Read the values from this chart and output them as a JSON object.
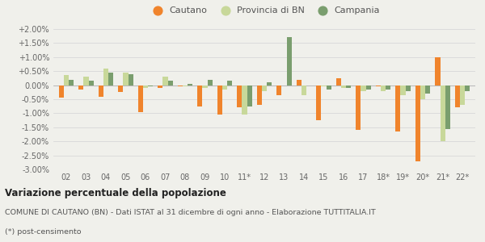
{
  "categories": [
    "02",
    "03",
    "04",
    "05",
    "06",
    "07",
    "08",
    "09",
    "10",
    "11*",
    "12",
    "13",
    "14",
    "15",
    "16",
    "17",
    "18*",
    "19*",
    "20*",
    "21*",
    "22*"
  ],
  "cautano": [
    -0.45,
    -0.15,
    -0.4,
    -0.25,
    -0.95,
    -0.1,
    -0.05,
    -0.75,
    -1.05,
    -0.8,
    -0.7,
    -0.35,
    0.2,
    -1.25,
    0.25,
    -1.6,
    -0.05,
    -1.65,
    -2.7,
    1.0,
    -0.8
  ],
  "provincia": [
    0.35,
    0.3,
    0.6,
    0.45,
    -0.1,
    0.3,
    -0.05,
    -0.1,
    -0.15,
    -1.05,
    -0.2,
    0.0,
    -0.35,
    -0.05,
    -0.1,
    -0.2,
    -0.2,
    -0.35,
    -0.5,
    -2.0,
    -0.7
  ],
  "campania": [
    0.2,
    0.15,
    0.45,
    0.4,
    -0.05,
    0.15,
    0.05,
    0.2,
    0.15,
    -0.75,
    0.1,
    1.7,
    0.0,
    -0.15,
    -0.1,
    -0.15,
    -0.15,
    -0.2,
    -0.3,
    -1.55,
    -0.2
  ],
  "color_cautano": "#f0842c",
  "color_provincia": "#c8d89a",
  "color_campania": "#7a9e6e",
  "ylim": [
    -3.0,
    2.0
  ],
  "yticks": [
    -3.0,
    -2.5,
    -2.0,
    -1.5,
    -1.0,
    -0.5,
    0.0,
    0.5,
    1.0,
    1.5,
    2.0
  ],
  "title": "Variazione percentuale della popolazione",
  "subtitle1": "COMUNE DI CAUTANO (BN) - Dati ISTAT al 31 dicembre di ogni anno - Elaborazione TUTTITALIA.IT",
  "subtitle2": "(*) post-censimento",
  "legend_labels": [
    "Cautano",
    "Provincia di BN",
    "Campania"
  ],
  "bg_color": "#f0f0eb",
  "plot_bg_color": "#f0f0eb",
  "bar_width": 0.25
}
